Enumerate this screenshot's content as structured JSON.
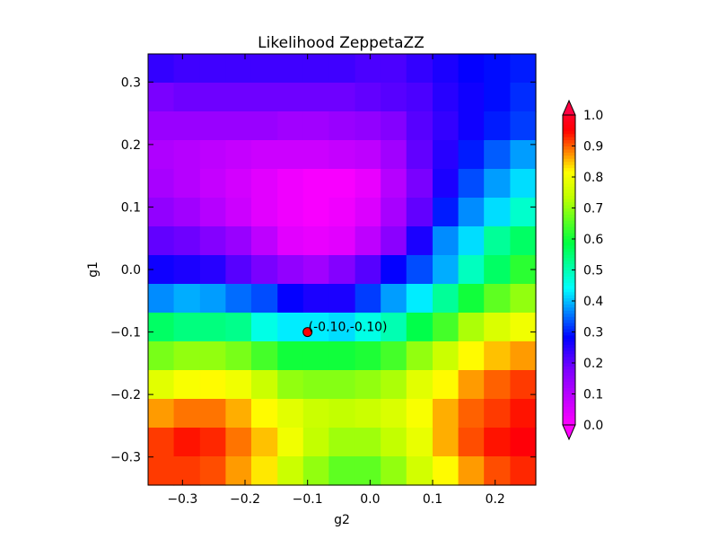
{
  "chart_data": {
    "type": "heatmap",
    "title": "Likelihood ZeppetaZZ",
    "xlabel": "g2",
    "ylabel": "g1",
    "xlim": [
      -0.355,
      0.265
    ],
    "ylim": [
      -0.345,
      0.345
    ],
    "grid": false,
    "x_edges": [
      -0.355,
      -0.314,
      -0.272,
      -0.231,
      -0.19,
      -0.148,
      -0.107,
      -0.066,
      -0.024,
      0.017,
      0.058,
      0.1,
      0.141,
      0.182,
      0.224,
      0.265
    ],
    "y_edges": [
      -0.345,
      -0.299,
      -0.253,
      -0.207,
      -0.161,
      -0.115,
      -0.069,
      -0.023,
      0.023,
      0.069,
      0.115,
      0.161,
      0.207,
      0.253,
      0.299,
      0.345
    ],
    "z_rows_top_to_bottom": [
      [
        0.24,
        0.23,
        0.23,
        0.23,
        0.23,
        0.23,
        0.23,
        0.23,
        0.22,
        0.22,
        0.24,
        0.26,
        0.28,
        0.29,
        0.3
      ],
      [
        0.18,
        0.19,
        0.19,
        0.19,
        0.19,
        0.19,
        0.19,
        0.19,
        0.2,
        0.21,
        0.22,
        0.25,
        0.27,
        0.29,
        0.31
      ],
      [
        0.14,
        0.14,
        0.14,
        0.14,
        0.14,
        0.13,
        0.13,
        0.14,
        0.15,
        0.17,
        0.21,
        0.24,
        0.27,
        0.3,
        0.32
      ],
      [
        0.11,
        0.1,
        0.09,
        0.08,
        0.07,
        0.07,
        0.07,
        0.08,
        0.09,
        0.13,
        0.2,
        0.25,
        0.3,
        0.34,
        0.38
      ],
      [
        0.12,
        0.1,
        0.08,
        0.06,
        0.04,
        0.02,
        0.01,
        0.01,
        0.03,
        0.1,
        0.18,
        0.26,
        0.33,
        0.38,
        0.42
      ],
      [
        0.15,
        0.13,
        0.1,
        0.07,
        0.04,
        0.02,
        0.01,
        0.02,
        0.05,
        0.12,
        0.2,
        0.3,
        0.37,
        0.42,
        0.48
      ],
      [
        0.2,
        0.19,
        0.17,
        0.14,
        0.09,
        0.04,
        0.03,
        0.04,
        0.09,
        0.16,
        0.26,
        0.37,
        0.42,
        0.52,
        0.56
      ],
      [
        0.27,
        0.26,
        0.25,
        0.21,
        0.18,
        0.15,
        0.13,
        0.17,
        0.21,
        0.28,
        0.33,
        0.39,
        0.49,
        0.56,
        0.62
      ],
      [
        0.37,
        0.39,
        0.38,
        0.35,
        0.33,
        0.28,
        0.26,
        0.26,
        0.32,
        0.38,
        0.43,
        0.52,
        0.6,
        0.66,
        0.7
      ],
      [
        0.56,
        0.54,
        0.54,
        0.53,
        0.46,
        0.43,
        0.43,
        0.42,
        0.46,
        0.5,
        0.58,
        0.64,
        0.72,
        0.77,
        0.8
      ],
      [
        0.68,
        0.7,
        0.7,
        0.68,
        0.64,
        0.6,
        0.6,
        0.6,
        0.61,
        0.64,
        0.7,
        0.75,
        0.82,
        0.85,
        0.87
      ],
      [
        0.78,
        0.81,
        0.82,
        0.8,
        0.75,
        0.7,
        0.69,
        0.69,
        0.7,
        0.72,
        0.78,
        0.82,
        0.87,
        0.9,
        0.92
      ],
      [
        0.87,
        0.89,
        0.89,
        0.86,
        0.82,
        0.78,
        0.75,
        0.74,
        0.75,
        0.77,
        0.81,
        0.86,
        0.9,
        0.92,
        0.94
      ],
      [
        0.92,
        0.94,
        0.93,
        0.89,
        0.85,
        0.8,
        0.74,
        0.71,
        0.71,
        0.74,
        0.79,
        0.86,
        0.91,
        0.94,
        0.96
      ],
      [
        0.92,
        0.92,
        0.91,
        0.87,
        0.83,
        0.75,
        0.7,
        0.66,
        0.66,
        0.7,
        0.76,
        0.82,
        0.87,
        0.91,
        0.93
      ]
    ],
    "x_ticks": [
      -0.3,
      -0.2,
      -0.1,
      0.0,
      0.1,
      0.2
    ],
    "x_tick_labels": [
      "−0.3",
      "−0.2",
      "−0.1",
      "0.0",
      "0.1",
      "0.2"
    ],
    "y_ticks": [
      -0.3,
      -0.2,
      -0.1,
      0.0,
      0.1,
      0.2,
      0.3
    ],
    "y_tick_labels": [
      "−0.3",
      "−0.2",
      "−0.1",
      "0.0",
      "0.1",
      "0.2",
      "0.3"
    ],
    "marker": {
      "x": -0.1,
      "y": -0.1,
      "label": "(-0.10,-0.10)",
      "color": "#ff0000"
    },
    "colorbar": {
      "range": [
        0.0,
        1.0
      ],
      "ticks": [
        0.0,
        0.1,
        0.2,
        0.3,
        0.4,
        0.5,
        0.6,
        0.7,
        0.8,
        0.9,
        1.0
      ],
      "tick_labels": [
        "0.0",
        "0.1",
        "0.2",
        "0.3",
        "0.4",
        "0.5",
        "0.6",
        "0.7",
        "0.8",
        "0.9",
        "1.0"
      ],
      "extend": "both",
      "under_color": "#ff00ff",
      "over_color": "#ff0040"
    },
    "colormap": "gist_rainbow_r"
  }
}
